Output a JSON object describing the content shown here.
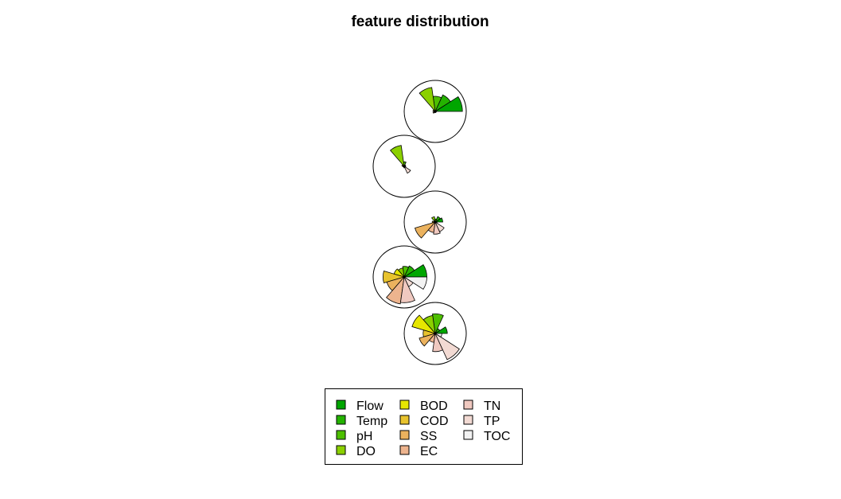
{
  "chart_data": {
    "type": "segment-star",
    "title": "feature distribution",
    "variables": [
      "Flow",
      "Temp",
      "pH",
      "DO",
      "BOD",
      "COD",
      "SS",
      "EC",
      "TN",
      "TP",
      "TOC"
    ],
    "colors": [
      "#00A600",
      "#24B300",
      "#4DBF00",
      "#8BD000",
      "#E6E600",
      "#E8C32E",
      "#EBB25E",
      "#EDB48E",
      "#F0C9C0",
      "#F2DAD3",
      "#F2F2F2"
    ],
    "stars": [
      {
        "values": [
          0.9,
          0.6,
          0.5,
          0.8,
          0.08,
          0.05,
          0.08,
          0.04,
          0.04,
          0.03,
          0.04
        ]
      },
      {
        "values": [
          0.05,
          0.05,
          0.15,
          0.7,
          0.08,
          0.05,
          0.03,
          0.03,
          0.05,
          0.25,
          0.05
        ]
      },
      {
        "values": [
          0.25,
          0.2,
          0.1,
          0.18,
          0.05,
          0.1,
          0.7,
          0.35,
          0.4,
          0.35,
          0.06
        ]
      },
      {
        "values": [
          0.75,
          0.4,
          0.35,
          0.3,
          0.35,
          0.7,
          0.6,
          0.9,
          0.85,
          0.35,
          0.75
        ]
      },
      {
        "values": [
          0.4,
          0.18,
          0.65,
          0.6,
          0.8,
          0.4,
          0.55,
          0.3,
          0.6,
          0.95,
          0.22
        ]
      }
    ],
    "legend": {
      "entries": [
        "Flow",
        "Temp",
        "pH",
        "DO",
        "BOD",
        "COD",
        "SS",
        "EC",
        "TN",
        "TP",
        "TOC"
      ]
    }
  }
}
